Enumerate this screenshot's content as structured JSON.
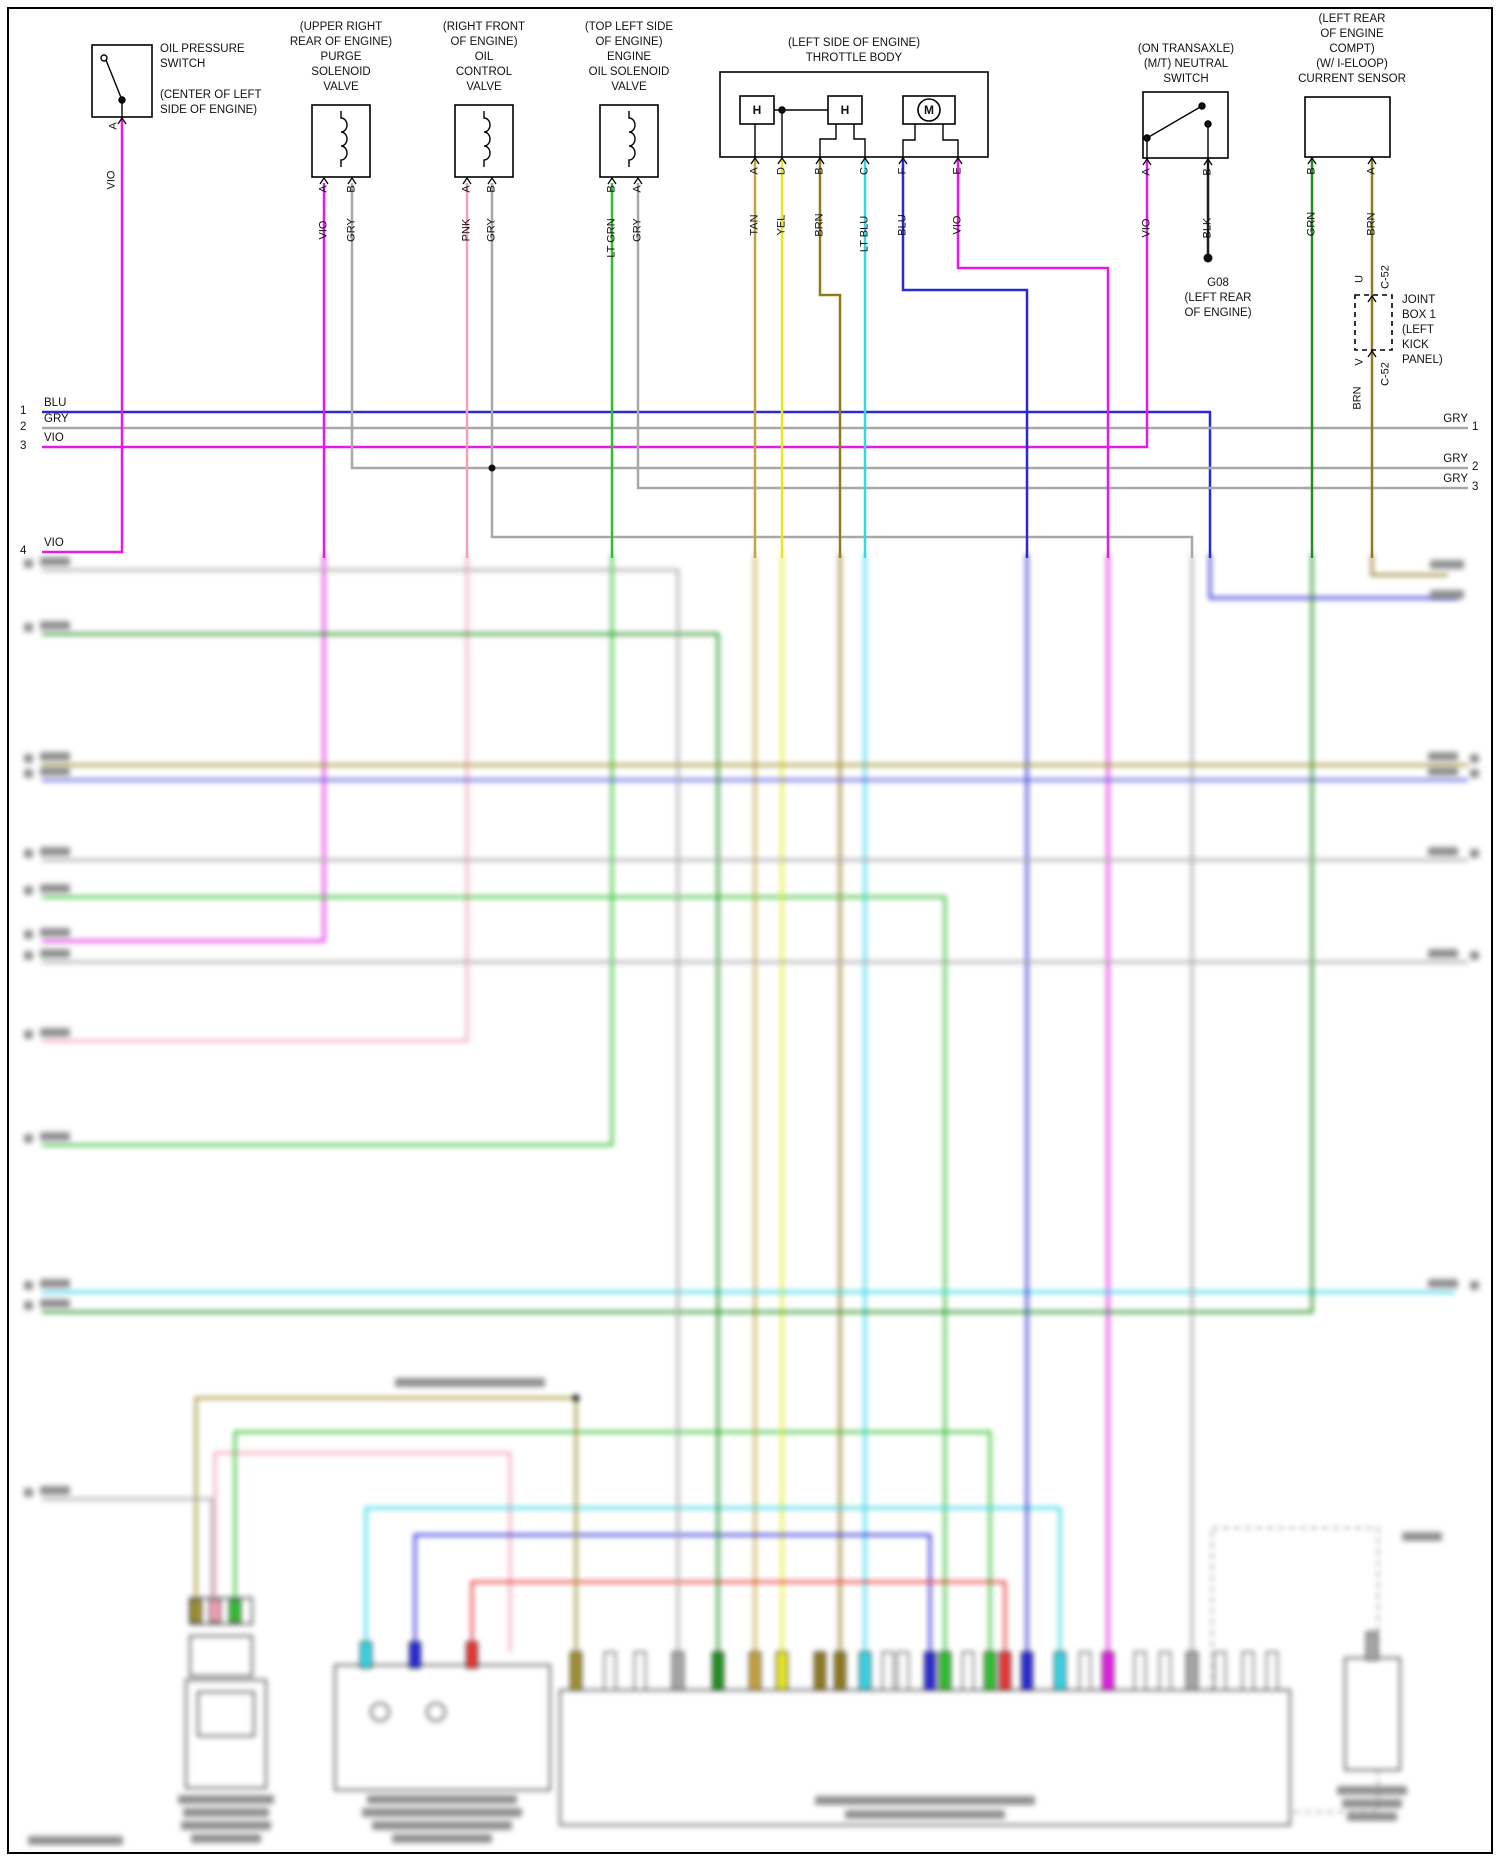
{
  "diagram": {
    "left_rails": [
      {
        "num": "1",
        "label": "BLU"
      },
      {
        "num": "2",
        "label": "GRY"
      },
      {
        "num": "3",
        "label": "VIO"
      },
      {
        "num": "4",
        "label": "VIO"
      }
    ],
    "right_rails": [
      {
        "label": "GRY",
        "num": "1"
      },
      {
        "label": "GRY",
        "num": "2"
      },
      {
        "label": "GRY",
        "num": "3"
      }
    ]
  },
  "components": {
    "oil_pressure_switch": {
      "name": [
        "OIL PRESSURE",
        "SWITCH"
      ],
      "location": [
        "(CENTER OF LEFT",
        "SIDE OF ENGINE)"
      ],
      "pin_a": "A",
      "wire_a": "VIO"
    },
    "purge_solenoid_valve": {
      "header": [
        "(UPPER RIGHT",
        "REAR OF ENGINE)",
        "PURGE",
        "SOLENOID",
        "VALVE"
      ],
      "pin_a": "A",
      "pin_b": "B",
      "wire_a": "VIO",
      "wire_b": "GRY"
    },
    "oil_control_valve": {
      "header": [
        "(RIGHT FRONT",
        "OF ENGINE)",
        "OIL",
        "CONTROL",
        "VALVE"
      ],
      "pin_a": "A",
      "pin_b": "B",
      "wire_a": "PNK",
      "wire_b": "GRY"
    },
    "engine_oil_solenoid_valve": {
      "header": [
        "(TOP LEFT SIDE",
        "OF ENGINE)",
        "ENGINE",
        "OIL SOLENOID",
        "VALVE"
      ],
      "pin_b": "B",
      "pin_a": "A",
      "wire_b": "LT GRN",
      "wire_a": "GRY"
    },
    "throttle_body": {
      "header": [
        "(LEFT SIDE OF ENGINE)",
        "THROTTLE BODY"
      ],
      "heater1": "H",
      "heater2": "H",
      "motor": "M",
      "pins": [
        {
          "letter": "A",
          "wire": "TAN"
        },
        {
          "letter": "D",
          "wire": "YEL"
        },
        {
          "letter": "B",
          "wire": "BRN"
        },
        {
          "letter": "C",
          "wire": "LT BLU"
        },
        {
          "letter": "F",
          "wire": "BLU"
        },
        {
          "letter": "E",
          "wire": "VIO"
        }
      ]
    },
    "neutral_switch": {
      "header": [
        "(ON TRANSAXLE)",
        "(M/T) NEUTRAL",
        "SWITCH"
      ],
      "pin_a": "A",
      "pin_b": "B",
      "wire_a": "VIO",
      "wire_b": "BLK"
    },
    "ground": {
      "id": "G08",
      "location": [
        "(LEFT REAR",
        "OF ENGINE)"
      ]
    },
    "current_sensor": {
      "header": [
        "(LEFT REAR",
        "OF ENGINE",
        "COMPT)",
        "(W/ I-ELOOP)",
        "CURRENT SENSOR"
      ],
      "pin_b": "B",
      "pin_a": "A",
      "wire_b": "GRN",
      "wire_a": "BRN"
    },
    "joint_box": {
      "label": [
        "JOINT",
        "BOX 1",
        "(LEFT",
        "KICK",
        "PANEL)"
      ],
      "terminal_in": "U",
      "connector_in": "C-52",
      "terminal_out": "V",
      "connector_out": "C-52",
      "wire_out": "BRN"
    }
  },
  "wire_colors": {
    "VIO": "#e619e6",
    "GRY": "#a8a8a8",
    "BLU": "#2929d6",
    "PNK": "#f5a0b4",
    "LT_GRN": "#2fbf2f",
    "GRN": "#1f8f1f",
    "TAN": "#c8a23c",
    "YEL": "#e8e820",
    "BRN": "#8f7a1f",
    "LT_BLU": "#35d6e8",
    "BLK": "#1a1a1a",
    "RED": "#e83535"
  }
}
